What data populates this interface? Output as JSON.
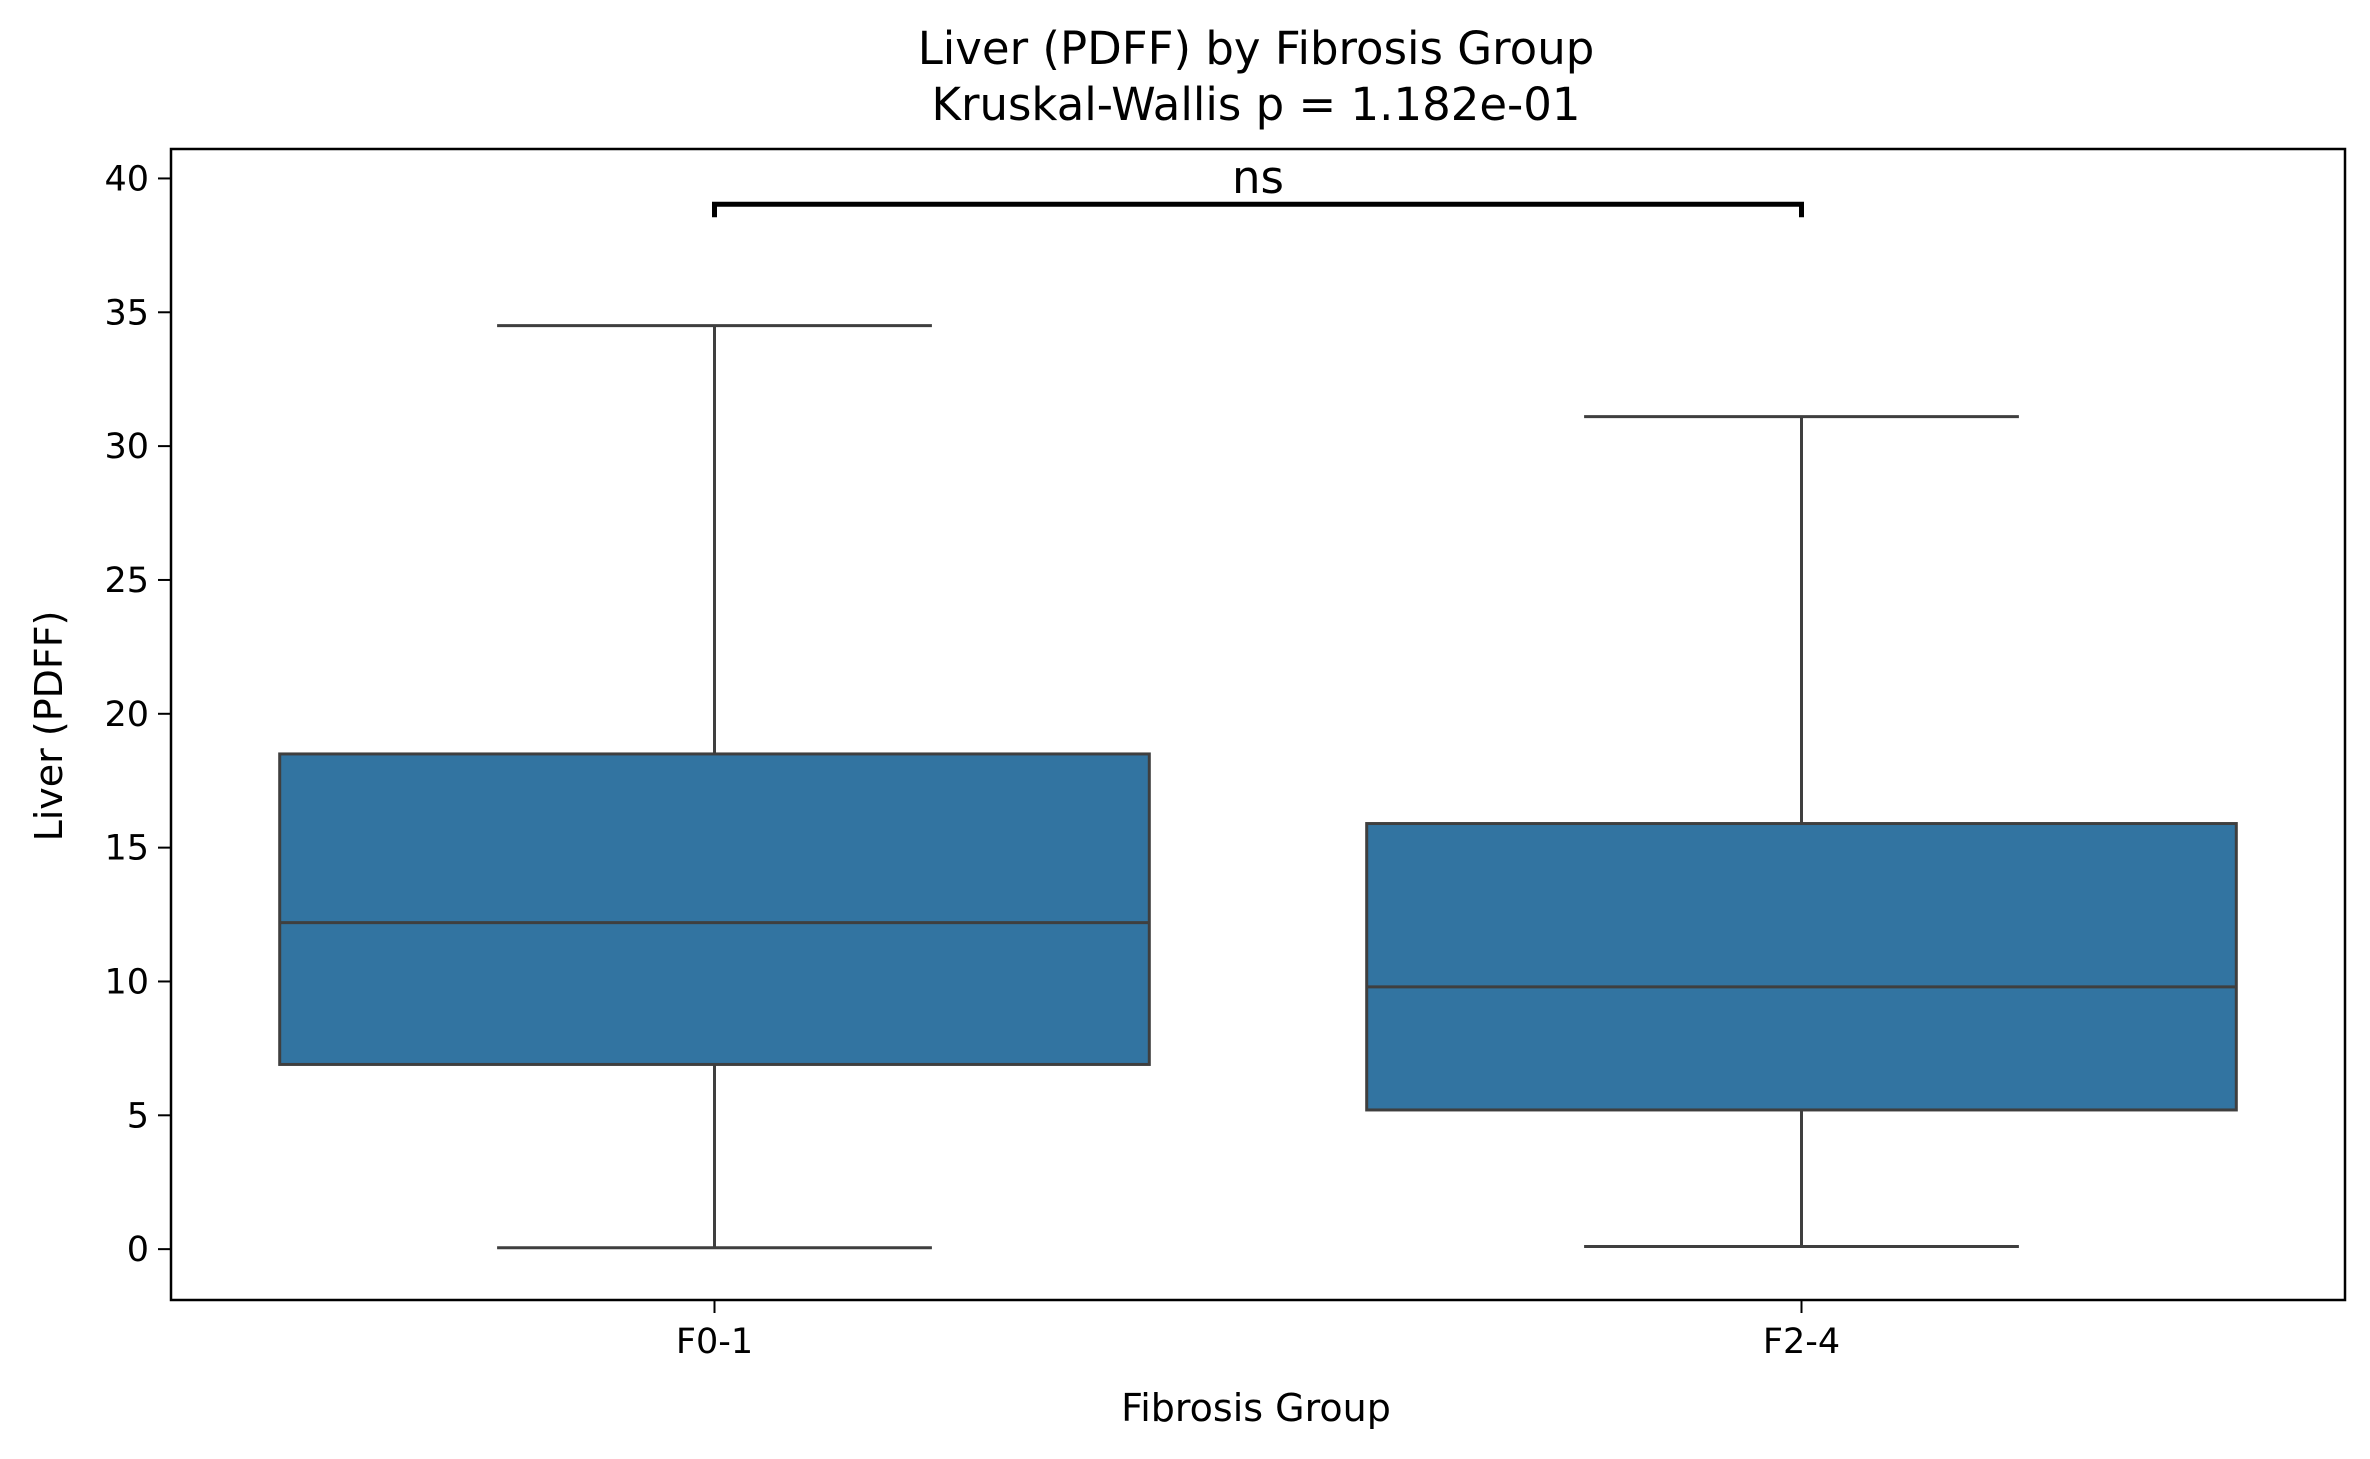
{
  "chart_data": {
    "type": "box",
    "title": "Liver (PDFF) by Fibrosis Group",
    "subtitle": "Kruskal-Wallis p = 1.182e-01",
    "xlabel": "Fibrosis Group",
    "ylabel": "Liver (PDFF)",
    "ylim": [
      -1.9,
      41.1
    ],
    "yticks": [
      0,
      5,
      10,
      15,
      20,
      25,
      30,
      35,
      40
    ],
    "categories": [
      "F0-1",
      "F2-4"
    ],
    "box_color": "#3274a1",
    "edge_color": "#3f3f3f",
    "boxes": [
      {
        "category": "F0-1",
        "whisker_low": 0.05,
        "q1": 6.9,
        "median": 12.2,
        "q3": 18.5,
        "whisker_high": 34.5
      },
      {
        "category": "F2-4",
        "whisker_low": 0.1,
        "q1": 5.2,
        "median": 9.8,
        "q3": 15.9,
        "whisker_high": 31.1
      }
    ],
    "annotations": [
      {
        "text": "ns",
        "from": "F0-1",
        "to": "F2-4",
        "y": 39.0
      }
    ],
    "grid": false
  }
}
